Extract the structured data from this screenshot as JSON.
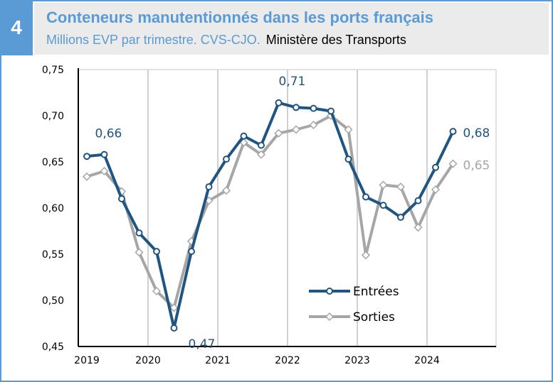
{
  "header": {
    "number": "4",
    "title": "Conteneurs manutentionnés dans les ports français",
    "subtitle": "Millions EVP par trimestre. CVS-CJO.",
    "source": "Ministère des Transports"
  },
  "colors": {
    "frame": "#5b9bd5",
    "entrees": "#1f5582",
    "sorties": "#a6a6a6"
  },
  "chart_data": {
    "type": "line",
    "title": "",
    "xlabel": "",
    "ylabel": "",
    "ylim": [
      0.45,
      0.75
    ],
    "yticks": [
      "0,45",
      "0,50",
      "0,55",
      "0,60",
      "0,65",
      "0,70",
      "0,75"
    ],
    "xticks": [
      "2019",
      "2020",
      "2021",
      "2022",
      "2023",
      "2024"
    ],
    "grid": "vertical",
    "legend": "bottom-right",
    "x": [
      "2019T1",
      "2019T2",
      "2019T3",
      "2019T4",
      "2020T1",
      "2020T2",
      "2020T3",
      "2020T4",
      "2021T1",
      "2021T2",
      "2021T3",
      "2021T4",
      "2022T1",
      "2022T2",
      "2022T3",
      "2022T4",
      "2023T1",
      "2023T2",
      "2023T3",
      "2023T4",
      "2024T1",
      "2024T2"
    ],
    "series": [
      {
        "name": "Entrées",
        "color": "#1f5582",
        "marker": "circle",
        "values": [
          0.656,
          0.658,
          0.61,
          0.573,
          0.553,
          0.47,
          0.553,
          0.623,
          0.653,
          0.678,
          0.668,
          0.714,
          0.709,
          0.708,
          0.705,
          0.653,
          0.612,
          0.603,
          0.59,
          0.608,
          0.644,
          0.683
        ]
      },
      {
        "name": "Sorties",
        "color": "#a6a6a6",
        "marker": "diamond",
        "values": [
          0.634,
          0.64,
          0.618,
          0.552,
          0.51,
          0.492,
          0.564,
          0.608,
          0.619,
          0.671,
          0.658,
          0.681,
          0.685,
          0.69,
          0.7,
          0.685,
          0.549,
          0.625,
          0.623,
          0.579,
          0.62,
          0.648
        ]
      }
    ],
    "annotations": [
      {
        "text": "0,66",
        "series": "Entrées",
        "index": 1
      },
      {
        "text": "0,47",
        "series": "Entrées",
        "index": 5
      },
      {
        "text": "0,71",
        "series": "Entrées",
        "index": 11
      },
      {
        "text": "0,68",
        "series": "Entrées",
        "index": 21
      },
      {
        "text": "0,65",
        "series": "Sorties",
        "index": 21
      }
    ]
  }
}
